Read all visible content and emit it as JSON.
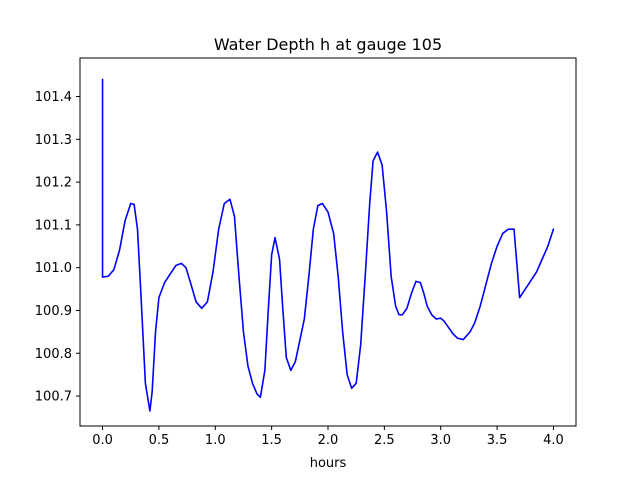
{
  "chart_data": {
    "type": "line",
    "title": "Water Depth h at gauge 105",
    "xlabel": "hours",
    "ylabel": "",
    "xlim": [
      -0.2,
      4.2
    ],
    "ylim": [
      100.63,
      101.49
    ],
    "xticks": [
      0.0,
      0.5,
      1.0,
      1.5,
      2.0,
      2.5,
      3.0,
      3.5,
      4.0
    ],
    "xtick_labels": [
      "0.0",
      "0.5",
      "1.0",
      "1.5",
      "2.0",
      "2.5",
      "3.0",
      "3.5",
      "4.0"
    ],
    "yticks": [
      100.7,
      100.8,
      100.9,
      101.0,
      101.1,
      101.2,
      101.3,
      101.4
    ],
    "ytick_labels": [
      "100.7",
      "100.8",
      "100.9",
      "101.0",
      "101.1",
      "101.2",
      "101.3",
      "101.4"
    ],
    "grid": false,
    "legend": "none",
    "series": [
      {
        "color": "#0000ff",
        "x": [
          0.0,
          0.0,
          0.0,
          0.05,
          0.1,
          0.15,
          0.2,
          0.25,
          0.28,
          0.31,
          0.34,
          0.38,
          0.42,
          0.44,
          0.47,
          0.5,
          0.55,
          0.6,
          0.65,
          0.7,
          0.74,
          0.78,
          0.83,
          0.88,
          0.93,
          0.98,
          1.03,
          1.08,
          1.13,
          1.17,
          1.21,
          1.25,
          1.29,
          1.33,
          1.37,
          1.4,
          1.44,
          1.47,
          1.5,
          1.53,
          1.57,
          1.6,
          1.63,
          1.67,
          1.71,
          1.75,
          1.79,
          1.83,
          1.87,
          1.91,
          1.95,
          2.0,
          2.05,
          2.09,
          2.13,
          2.17,
          2.21,
          2.25,
          2.29,
          2.33,
          2.37,
          2.4,
          2.44,
          2.48,
          2.52,
          2.56,
          2.6,
          2.63,
          2.66,
          2.7,
          2.74,
          2.78,
          2.82,
          2.85,
          2.88,
          2.92,
          2.96,
          3.0,
          3.03,
          3.07,
          3.11,
          3.15,
          3.2,
          3.26,
          3.3,
          3.35,
          3.4,
          3.45,
          3.5,
          3.55,
          3.6,
          3.65,
          3.7,
          3.75,
          3.8,
          3.85,
          3.9,
          3.95,
          4.0
        ],
        "y": [
          101.44,
          100.985,
          100.978,
          100.98,
          100.995,
          101.04,
          101.11,
          101.15,
          101.148,
          101.09,
          100.94,
          100.73,
          100.665,
          100.71,
          100.85,
          100.93,
          100.965,
          100.985,
          101.005,
          101.01,
          101.0,
          100.965,
          100.92,
          100.905,
          100.92,
          100.99,
          101.09,
          101.15,
          101.16,
          101.12,
          100.98,
          100.85,
          100.77,
          100.73,
          100.705,
          100.697,
          100.76,
          100.9,
          101.03,
          101.07,
          101.02,
          100.9,
          100.79,
          100.76,
          100.78,
          100.83,
          100.88,
          100.98,
          101.09,
          101.145,
          101.15,
          101.13,
          101.08,
          100.98,
          100.85,
          100.75,
          100.718,
          100.73,
          100.82,
          100.98,
          101.15,
          101.25,
          101.27,
          101.24,
          101.13,
          100.98,
          100.91,
          100.89,
          100.89,
          100.905,
          100.94,
          100.968,
          100.965,
          100.94,
          100.91,
          100.89,
          100.88,
          100.882,
          100.875,
          100.86,
          100.845,
          100.835,
          100.832,
          100.85,
          100.87,
          100.91,
          100.96,
          101.01,
          101.05,
          101.08,
          101.09,
          101.09,
          100.93,
          100.95,
          100.97,
          100.99,
          101.02,
          101.05,
          101.09
        ]
      }
    ]
  }
}
